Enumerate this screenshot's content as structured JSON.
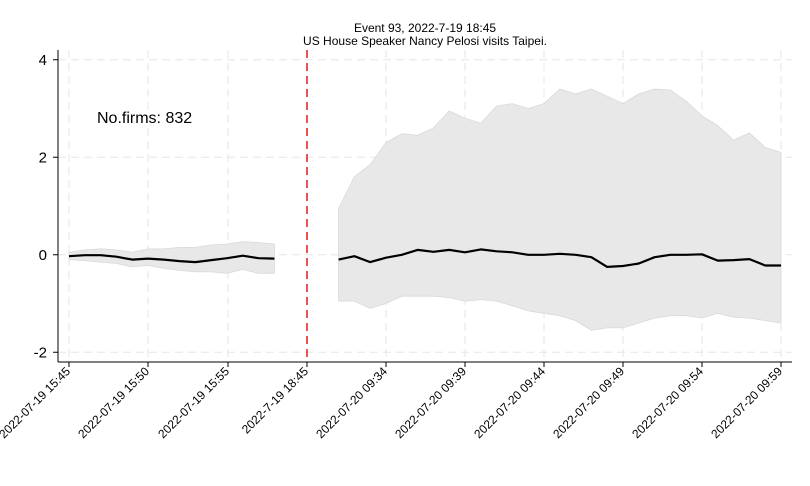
{
  "chart_data": {
    "type": "line",
    "title": "Event 93, 2022-7-19 18:45",
    "subtitle": "US House Speaker Nancy Pelosi visits Taipei.",
    "xlabel": "",
    "ylabel": "",
    "annotation": "No.firms: 832",
    "ylim": [
      -2.2,
      4.2
    ],
    "yticks": [
      4,
      2,
      0,
      -2
    ],
    "grid": true,
    "event_marker": {
      "label": "2022-7-19 18:45",
      "color": "#e31a1c",
      "style": "dashed"
    },
    "x_tick_labels": [
      "2022-07-19 15:45",
      "2022-07-19 15:50",
      "2022-07-19 15:55",
      "2022-7-19 18:45",
      "2022-07-20 09:34",
      "2022-07-20 09:39",
      "2022-07-20 09:44",
      "2022-07-20 09:49",
      "2022-07-20 09:54",
      "2022-07-20 09:59"
    ],
    "colors": {
      "line": "#000000",
      "band": "#e8e8e8",
      "event": "#e31a1c",
      "grid": "#e6e6e6"
    },
    "segments": [
      {
        "period": "pre-event",
        "x": [
          "15:45",
          "15:46",
          "15:47",
          "15:48",
          "15:49",
          "15:50",
          "15:51",
          "15:52",
          "15:53",
          "15:54",
          "15:55",
          "15:56",
          "15:57",
          "15:58"
        ],
        "mean": [
          -0.03,
          -0.01,
          -0.01,
          -0.04,
          -0.1,
          -0.08,
          -0.1,
          -0.13,
          -0.15,
          -0.11,
          -0.07,
          -0.02,
          -0.07,
          -0.08
        ],
        "upper": [
          0.05,
          0.1,
          0.12,
          0.1,
          0.05,
          0.12,
          0.12,
          0.15,
          0.15,
          0.2,
          0.22,
          0.27,
          0.25,
          0.22
        ],
        "lower": [
          -0.1,
          -0.12,
          -0.15,
          -0.18,
          -0.25,
          -0.22,
          -0.28,
          -0.32,
          -0.35,
          -0.35,
          -0.38,
          -0.3,
          -0.38,
          -0.38
        ]
      },
      {
        "period": "post-event",
        "x": [
          "09:31",
          "09:32",
          "09:33",
          "09:34",
          "09:35",
          "09:36",
          "09:37",
          "09:38",
          "09:39",
          "09:40",
          "09:41",
          "09:42",
          "09:43",
          "09:44",
          "09:45",
          "09:46",
          "09:47",
          "09:48",
          "09:49",
          "09:50",
          "09:51",
          "09:52",
          "09:53",
          "09:54",
          "09:55",
          "09:56",
          "09:57",
          "09:58",
          "09:59"
        ],
        "mean": [
          -0.1,
          -0.03,
          -0.15,
          -0.06,
          0.0,
          0.1,
          0.06,
          0.1,
          0.05,
          0.11,
          0.07,
          0.05,
          0.0,
          0.0,
          0.02,
          0.0,
          -0.05,
          -0.25,
          -0.23,
          -0.18,
          -0.05,
          0.0,
          0.0,
          0.01,
          -0.12,
          -0.11,
          -0.09,
          -0.22,
          -0.22
        ],
        "upper": [
          0.95,
          1.6,
          1.85,
          2.3,
          2.48,
          2.45,
          2.6,
          2.95,
          2.8,
          2.7,
          3.05,
          3.1,
          3.0,
          3.1,
          3.4,
          3.3,
          3.4,
          3.25,
          3.1,
          3.3,
          3.4,
          3.38,
          3.15,
          2.85,
          2.65,
          2.35,
          2.5,
          2.2,
          2.1
        ],
        "lower": [
          -0.95,
          -0.95,
          -1.1,
          -1.0,
          -0.85,
          -0.85,
          -0.85,
          -0.88,
          -0.95,
          -0.92,
          -0.95,
          -1.05,
          -1.15,
          -1.2,
          -1.25,
          -1.35,
          -1.55,
          -1.5,
          -1.5,
          -1.4,
          -1.3,
          -1.25,
          -1.25,
          -1.3,
          -1.2,
          -1.28,
          -1.3,
          -1.35,
          -1.4
        ]
      }
    ]
  }
}
